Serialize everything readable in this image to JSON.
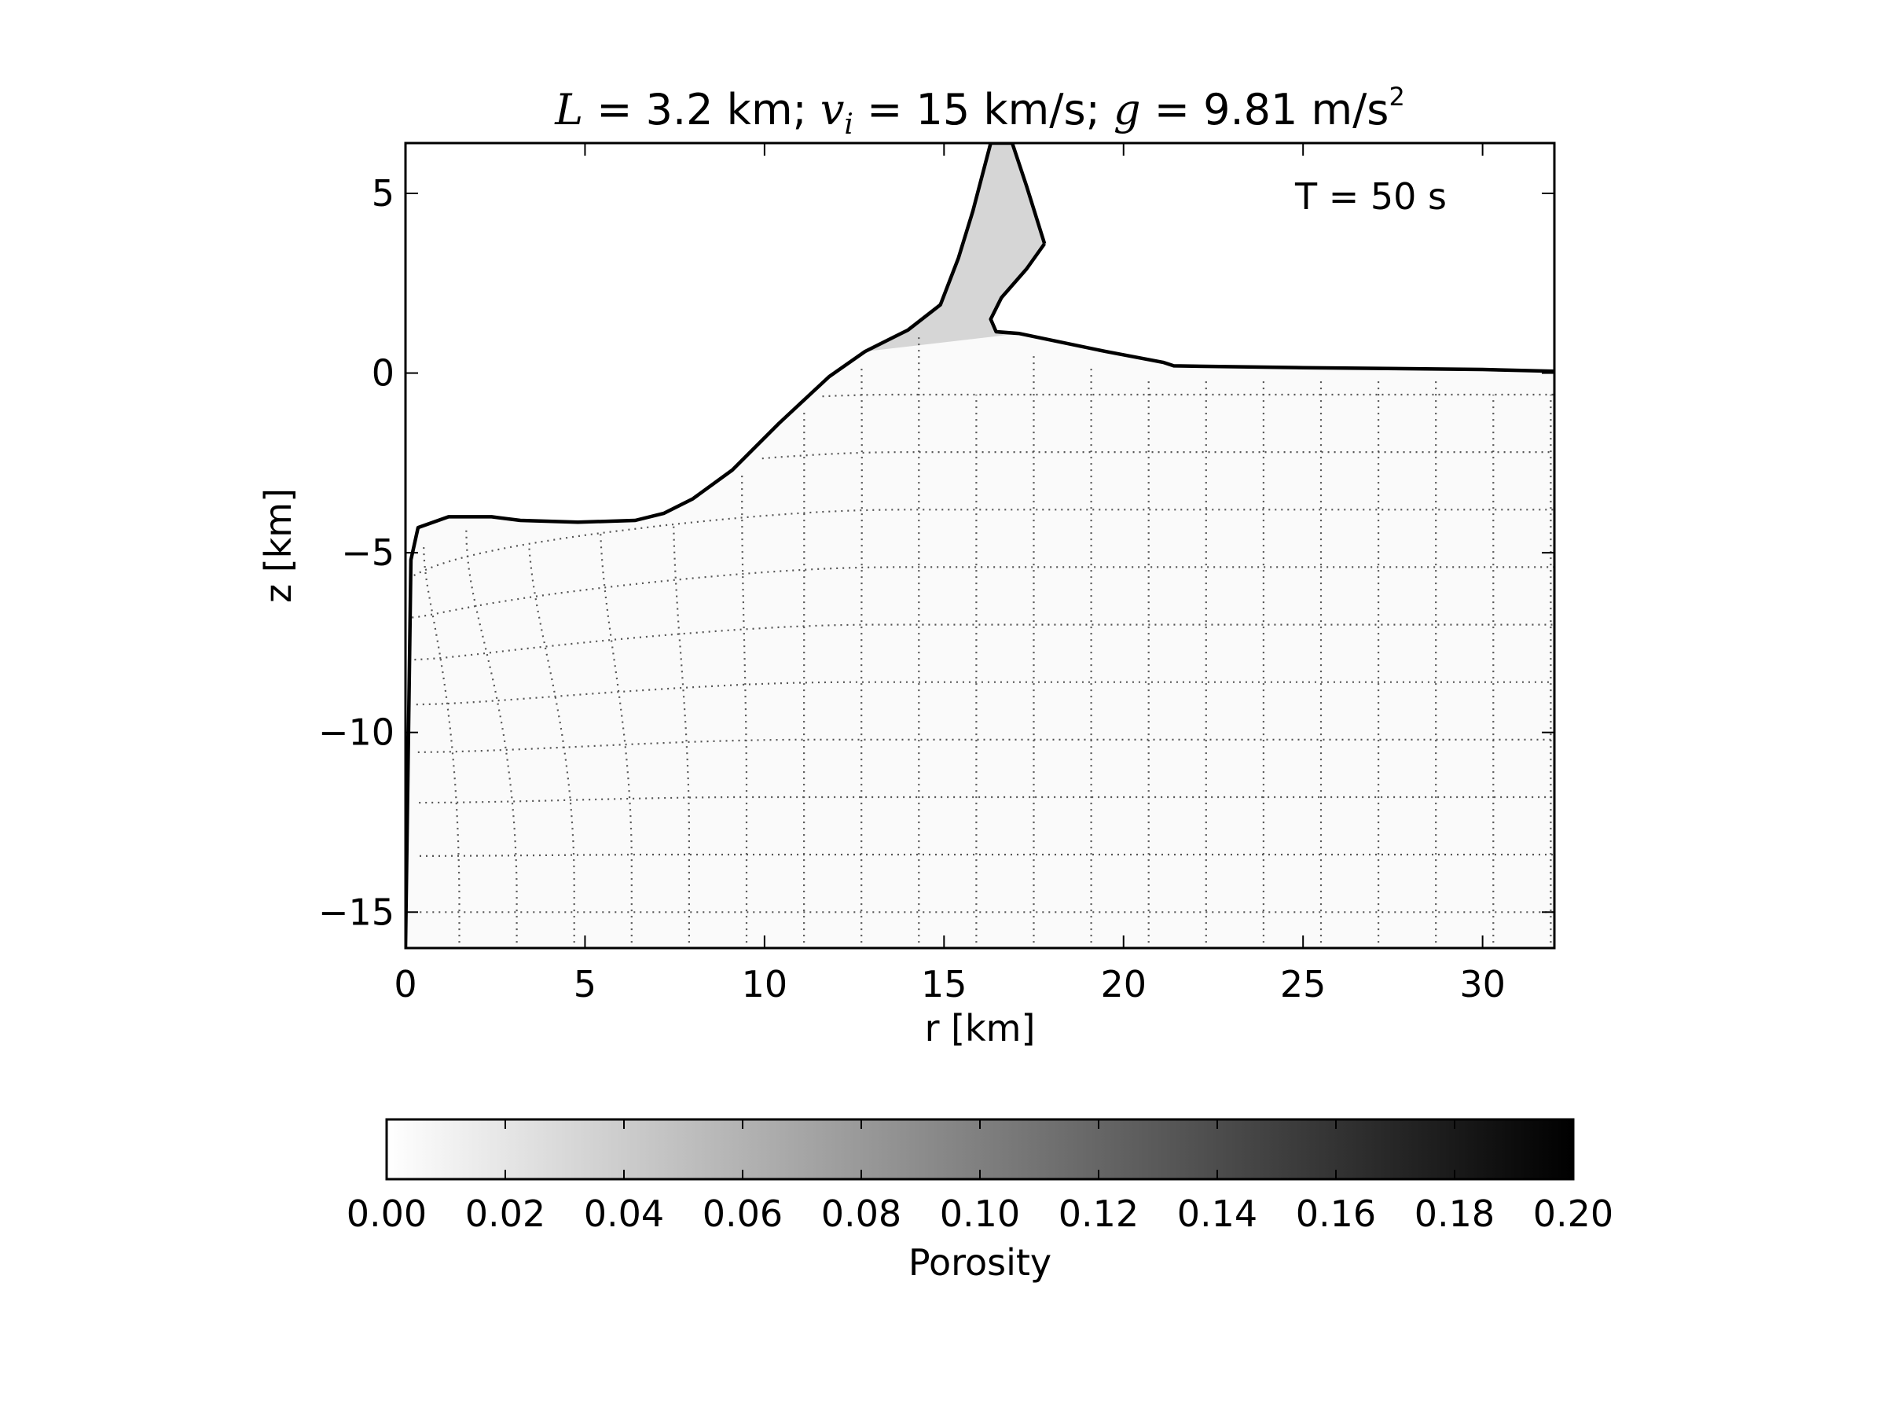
{
  "chart_data": {
    "type": "heatmap",
    "title": {
      "L_symbol": "L",
      "L_text": " = 3.2 km; ",
      "v_symbol": "v",
      "v_sub": "i",
      "v_text": " = 15 km/s; ",
      "g_symbol": "g",
      "g_text": " = 9.81 m/s",
      "g_sup": "2"
    },
    "annotation": "T =  50 s",
    "xlabel": "r [km]",
    "ylabel": "z [km]",
    "xlim": [
      0,
      32
    ],
    "ylim": [
      -16,
      6.4
    ],
    "xticks": [
      0,
      5,
      10,
      15,
      20,
      25,
      30
    ],
    "yticks": [
      5,
      0,
      -5,
      -10,
      -15
    ],
    "ytick_labels": [
      "5",
      "0",
      "−5",
      "−10",
      "−15"
    ],
    "surface_profile": {
      "r": [
        0,
        0.15,
        0.35,
        1.2,
        2.4,
        3.2,
        4.8,
        6.4,
        7.2,
        8.0,
        9.1,
        10.4,
        11.8,
        12.8,
        14.0,
        14.9,
        15.4,
        15.8,
        16.3,
        16.9,
        17.3,
        17.8
      ],
      "z": [
        -16,
        -5.2,
        -4.3,
        -4.0,
        -4.0,
        -4.1,
        -4.15,
        -4.1,
        -3.9,
        -3.5,
        -2.7,
        -1.4,
        -0.1,
        0.6,
        1.2,
        1.9,
        3.2,
        4.5,
        6.4,
        6.4,
        5.2,
        3.6
      ]
    },
    "ejecta_curtain_outer": {
      "r": [
        17.8,
        17.3,
        16.6,
        16.3,
        16.45,
        17.1,
        19.5,
        21.1,
        21.4,
        25,
        30,
        32
      ],
      "z": [
        3.6,
        2.9,
        2.1,
        1.5,
        1.15,
        1.1,
        0.6,
        0.3,
        0.2,
        0.15,
        0.1,
        0.05
      ]
    },
    "porosity_colorbar": {
      "label": "Porosity",
      "vmin": 0.0,
      "vmax": 0.2,
      "ticks": [
        "0.00",
        "0.02",
        "0.04",
        "0.06",
        "0.08",
        "0.10",
        "0.12",
        "0.14",
        "0.16",
        "0.18",
        "0.20"
      ],
      "colormap": [
        "#ffffff",
        "#000000"
      ]
    },
    "colors": {
      "line": "#000000",
      "grid_lines": "#555555",
      "material": "#fafafa",
      "curtain": "#d6d6d6"
    }
  }
}
